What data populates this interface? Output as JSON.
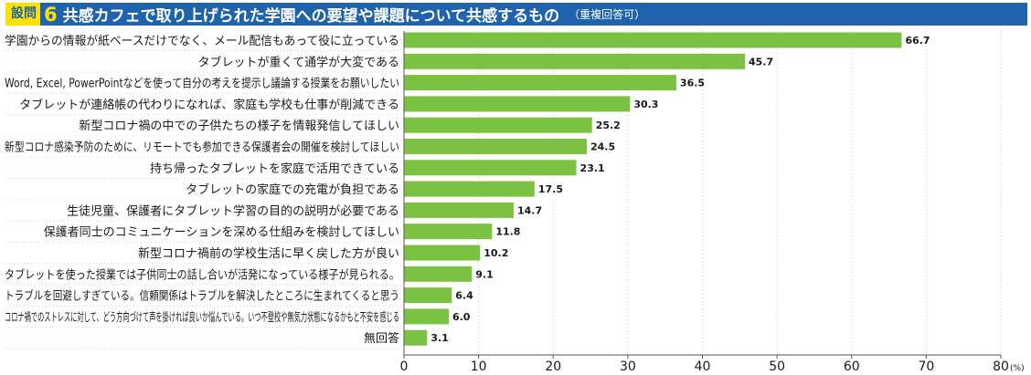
{
  "header": {
    "question_label": "設問",
    "question_number": "6",
    "title": "共感カフェで取り上げられた学園への要望や課題について共感するもの",
    "note": "（重複回答可）"
  },
  "chart_data": {
    "type": "bar",
    "orientation": "horizontal",
    "categories": [
      "学園からの情報が紙ベースだけでなく、メール配信もあって役に立っている",
      "タブレットが重くて通学が大変である",
      "Word, Excel, PowerPointなどを使って自分の考えを提示し議論する授業をお願いしたい",
      "タブレットが連絡帳の代わりになれば、家庭も学校も仕事が削減できる",
      "新型コロナ禍の中での子供たちの様子を情報発信してほしい",
      "新型コロナ感染予防のために、リモートでも参加できる保護者会の開催を検討してほしい",
      "持ち帰ったタブレットを家庭で活用できている",
      "タブレットの家庭での充電が負担である",
      "生徒児童、保護者にタブレット学習の目的の説明が必要である",
      "保護者同士のコミュニケーションを深める仕組みを検討してほしい",
      "新型コロナ禍前の学校生活に早く戻した方が良い",
      "タブレットを使った授業では子供同士の話し合いが活発になっている様子が見られる。",
      "トラブルを回避しすぎている。信頼関係はトラブルを解決したところに生まれてくると思う",
      "コロナ禍でのストレスに対して、どう方向づけて声を掛ければ良いか悩んでいる。いつ不登校や無気力状態になるかもと不安を感じる",
      "無回答"
    ],
    "values": [
      66.7,
      45.7,
      36.5,
      30.3,
      25.2,
      24.5,
      23.1,
      17.5,
      14.7,
      11.8,
      10.2,
      9.1,
      6.4,
      6.0,
      3.1
    ],
    "value_labels": [
      "66.7",
      "45.7",
      "36.5",
      "30.3",
      "25.2",
      "24.5",
      "23.1",
      "17.5",
      "14.7",
      "11.8",
      "10.2",
      "9.1",
      "6.4",
      "6.0",
      "3.1"
    ],
    "xlim": [
      0,
      80
    ],
    "xticks": [
      "0",
      "10",
      "20",
      "30",
      "40",
      "50",
      "60",
      "70",
      "80"
    ],
    "xunit": "(%)",
    "bar_color": "#7cc242",
    "grid": "dotted-vertical"
  }
}
